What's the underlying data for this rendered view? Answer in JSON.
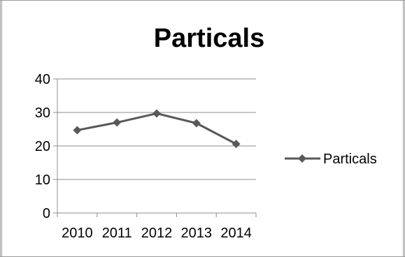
{
  "chart_data": {
    "type": "line",
    "title": "Particals",
    "xlabel": "",
    "ylabel": "",
    "categories": [
      "2010",
      "2011",
      "2012",
      "2013",
      "2014"
    ],
    "series": [
      {
        "name": "Particals",
        "values": [
          24.7,
          27.0,
          29.7,
          26.8,
          20.6
        ]
      }
    ],
    "ylim": [
      0,
      40
    ],
    "yticks": [
      "0",
      "10",
      "20",
      "30",
      "40"
    ],
    "grid": true,
    "legend": "right",
    "colors": {
      "series": "#595959",
      "grid": "#8c8c8c",
      "axis": "#8c8c8c",
      "text": "#000000"
    }
  }
}
